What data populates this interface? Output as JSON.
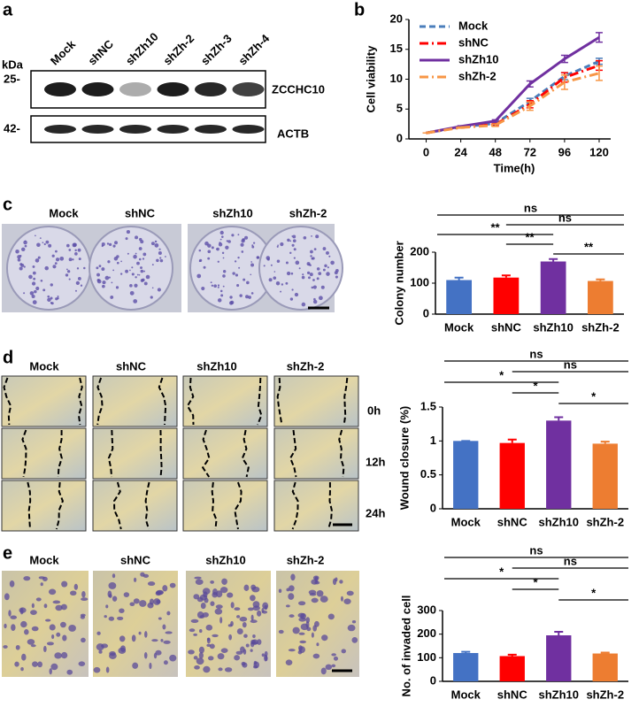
{
  "figure": {
    "panel_labels": [
      "a",
      "b",
      "c",
      "d",
      "e"
    ],
    "blot": {
      "lanes": [
        "Mock",
        "shNC",
        "shZh10",
        "shZh-2",
        "shZh-3",
        "shZh-4"
      ],
      "unit": "kDa",
      "markers": [
        "25-",
        "42-"
      ],
      "proteins": [
        "ZCCHC10",
        "ACTB"
      ]
    },
    "photos": {
      "c": [
        "Mock",
        "shNC",
        "shZh10",
        "shZh-2"
      ],
      "d": [
        "Mock",
        "shNC",
        "shZh10",
        "shZh-2"
      ],
      "d_times": [
        "0h",
        "12h",
        "24h"
      ],
      "e": [
        "Mock",
        "shNC",
        "shZh10",
        "shZh-2"
      ]
    }
  },
  "chart_data": [
    {
      "type": "line",
      "xlabel": "Time(h)",
      "ylabel": "Cell viability",
      "x": [
        0,
        24,
        48,
        72,
        96,
        120
      ],
      "xlim": [
        -12,
        128
      ],
      "xticks": [
        0,
        24,
        48,
        72,
        96,
        120
      ],
      "ylim": [
        0,
        20
      ],
      "yticks": [
        0,
        5,
        10,
        15,
        20
      ],
      "legend": "upper left",
      "series": [
        {
          "name": "Mock",
          "color": "#4a7ebb",
          "style": "dashed",
          "values": [
            1,
            2,
            2.6,
            6.3,
            10.5,
            13
          ],
          "errors": [
            0,
            0.1,
            0.2,
            0.5,
            0.6,
            0.5
          ]
        },
        {
          "name": "shNC",
          "color": "#ff0000",
          "style": "dashdot",
          "values": [
            1,
            2,
            2.4,
            5.8,
            10.3,
            12.3
          ],
          "errors": [
            0,
            0.1,
            0.2,
            0.6,
            0.8,
            0.8
          ]
        },
        {
          "name": "shZh10",
          "color": "#7030a0",
          "style": "solid",
          "values": [
            1,
            2.1,
            3,
            9.2,
            13.4,
            17
          ],
          "errors": [
            0,
            0.1,
            0.2,
            0.5,
            0.6,
            0.8
          ]
        },
        {
          "name": "shZh-2",
          "color": "#f79646",
          "style": "dashdot",
          "values": [
            1,
            1.9,
            2.3,
            5.5,
            9.5,
            11
          ],
          "errors": [
            0,
            0.1,
            0.2,
            0.7,
            1.2,
            1.2
          ]
        }
      ]
    },
    {
      "type": "bar",
      "ylabel": "Colony number",
      "categories": [
        "Mock",
        "shNC",
        "shZh10",
        "shZh-2"
      ],
      "values": [
        110,
        118,
        170,
        107
      ],
      "errors": [
        8,
        7,
        8,
        5
      ],
      "colors": [
        "#4472c4",
        "#ff0000",
        "#7030a0",
        "#ed7d31"
      ],
      "ylim": [
        0,
        200
      ],
      "yticks": [
        0,
        100,
        200
      ],
      "significance": [
        {
          "groups": [
            "Mock",
            "shZh-2"
          ],
          "label": "ns"
        },
        {
          "groups": [
            "shNC",
            "shZh-2"
          ],
          "label": "ns"
        },
        {
          "groups": [
            "Mock",
            "shZh10"
          ],
          "label": "**"
        },
        {
          "groups": [
            "shNC",
            "shZh10"
          ],
          "label": "**"
        },
        {
          "groups": [
            "shZh10",
            "shZh-2"
          ],
          "label": "**"
        }
      ]
    },
    {
      "type": "bar",
      "ylabel": "Wound closure (%)",
      "categories": [
        "Mock",
        "shNC",
        "shZh10",
        "shZh-2"
      ],
      "values": [
        1,
        0.97,
        1.3,
        0.96
      ],
      "errors": [
        0,
        0.05,
        0.05,
        0.03
      ],
      "colors": [
        "#4472c4",
        "#ff0000",
        "#7030a0",
        "#ed7d31"
      ],
      "ylim": [
        0,
        1.5
      ],
      "yticks": [
        0,
        0.5,
        1,
        1.5
      ],
      "significance": [
        {
          "groups": [
            "Mock",
            "shZh-2"
          ],
          "label": "ns"
        },
        {
          "groups": [
            "shNC",
            "shZh-2"
          ],
          "label": "ns"
        },
        {
          "groups": [
            "Mock",
            "shZh10"
          ],
          "label": "*"
        },
        {
          "groups": [
            "shNC",
            "shZh10"
          ],
          "label": "*"
        },
        {
          "groups": [
            "shZh10",
            "shZh-2"
          ],
          "label": "*"
        }
      ]
    },
    {
      "type": "bar",
      "ylabel": "No. of invaded cell",
      "categories": [
        "Mock",
        "shNC",
        "shZh10",
        "shZh-2"
      ],
      "values": [
        120,
        107,
        195,
        118
      ],
      "errors": [
        5,
        6,
        15,
        4
      ],
      "colors": [
        "#4472c4",
        "#ff0000",
        "#7030a0",
        "#ed7d31"
      ],
      "ylim": [
        0,
        300
      ],
      "yticks": [
        0,
        100,
        200,
        300
      ],
      "significance": [
        {
          "groups": [
            "Mock",
            "shZh-2"
          ],
          "label": "ns"
        },
        {
          "groups": [
            "shNC",
            "shZh-2"
          ],
          "label": "ns"
        },
        {
          "groups": [
            "Mock",
            "shZh10"
          ],
          "label": "*"
        },
        {
          "groups": [
            "shNC",
            "shZh10"
          ],
          "label": "*"
        },
        {
          "groups": [
            "shZh10",
            "shZh-2"
          ],
          "label": "*"
        }
      ]
    }
  ]
}
